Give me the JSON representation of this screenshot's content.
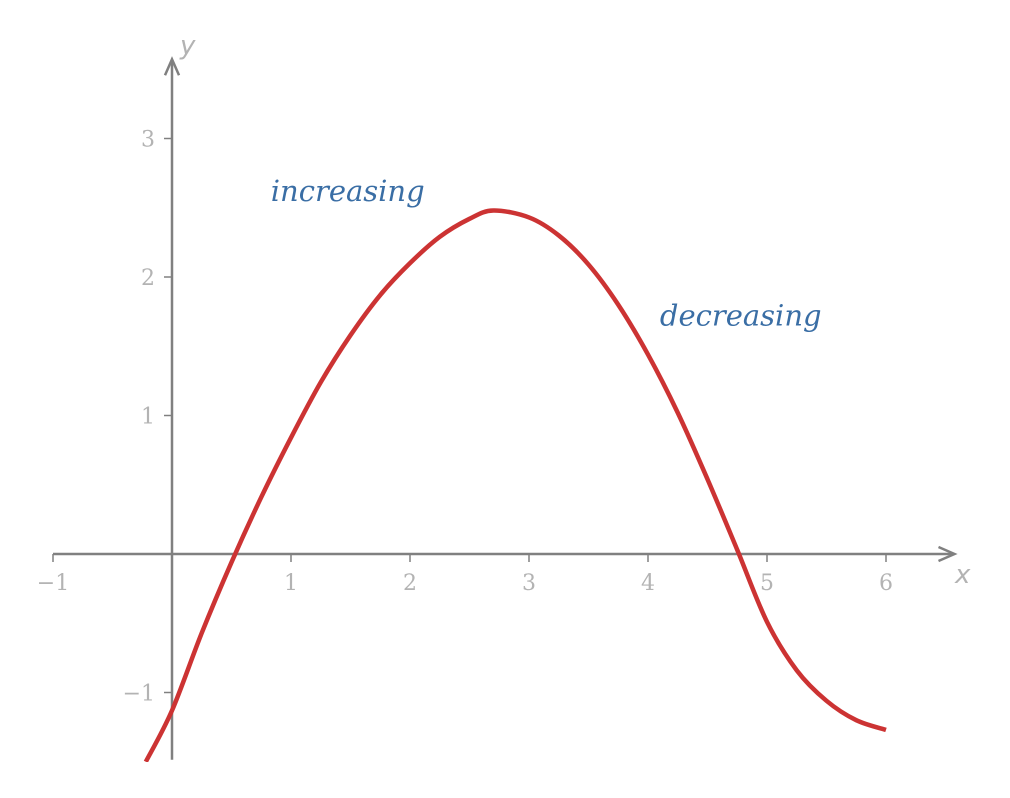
{
  "chart_data": {
    "type": "line",
    "title": "",
    "xlabel": "x",
    "ylabel": "y",
    "xlim": [
      -1,
      6.5
    ],
    "ylim": [
      -1.5,
      3.5
    ],
    "grid": false,
    "x_ticks": [
      -1,
      1,
      2,
      3,
      4,
      5,
      6
    ],
    "x_tick_labels": [
      "−1",
      "1",
      "2",
      "3",
      "4",
      "5",
      "6"
    ],
    "y_ticks": [
      -1,
      1,
      2,
      3
    ],
    "y_tick_labels": [
      "−1",
      "1",
      "2",
      "3"
    ],
    "curve_color": "#cc3333",
    "annotation_color": "#3a6ea5",
    "axis_color": "#808080",
    "series": [
      {
        "x": [
          -0.22,
          0,
          0.25,
          0.5,
          0.75,
          1,
          1.25,
          1.5,
          1.75,
          2,
          2.25,
          2.5,
          2.7,
          3,
          3.25,
          3.5,
          3.75,
          4,
          4.25,
          4.5,
          4.75,
          5,
          5.25,
          5.5,
          5.75,
          6
        ],
        "y": [
          -1.5,
          -1.13,
          -0.57,
          -0.06,
          0.41,
          0.84,
          1.24,
          1.58,
          1.87,
          2.1,
          2.29,
          2.42,
          2.48,
          2.43,
          2.3,
          2.09,
          1.8,
          1.44,
          1.02,
          0.54,
          0.03,
          -0.49,
          -0.84,
          -1.06,
          -1.2,
          -1.27
        ]
      }
    ],
    "annotations": [
      {
        "text": "increasing",
        "x": 0.83,
        "y": 2.55
      },
      {
        "text": "decreasing",
        "x": 4.1,
        "y": 1.65
      }
    ]
  }
}
